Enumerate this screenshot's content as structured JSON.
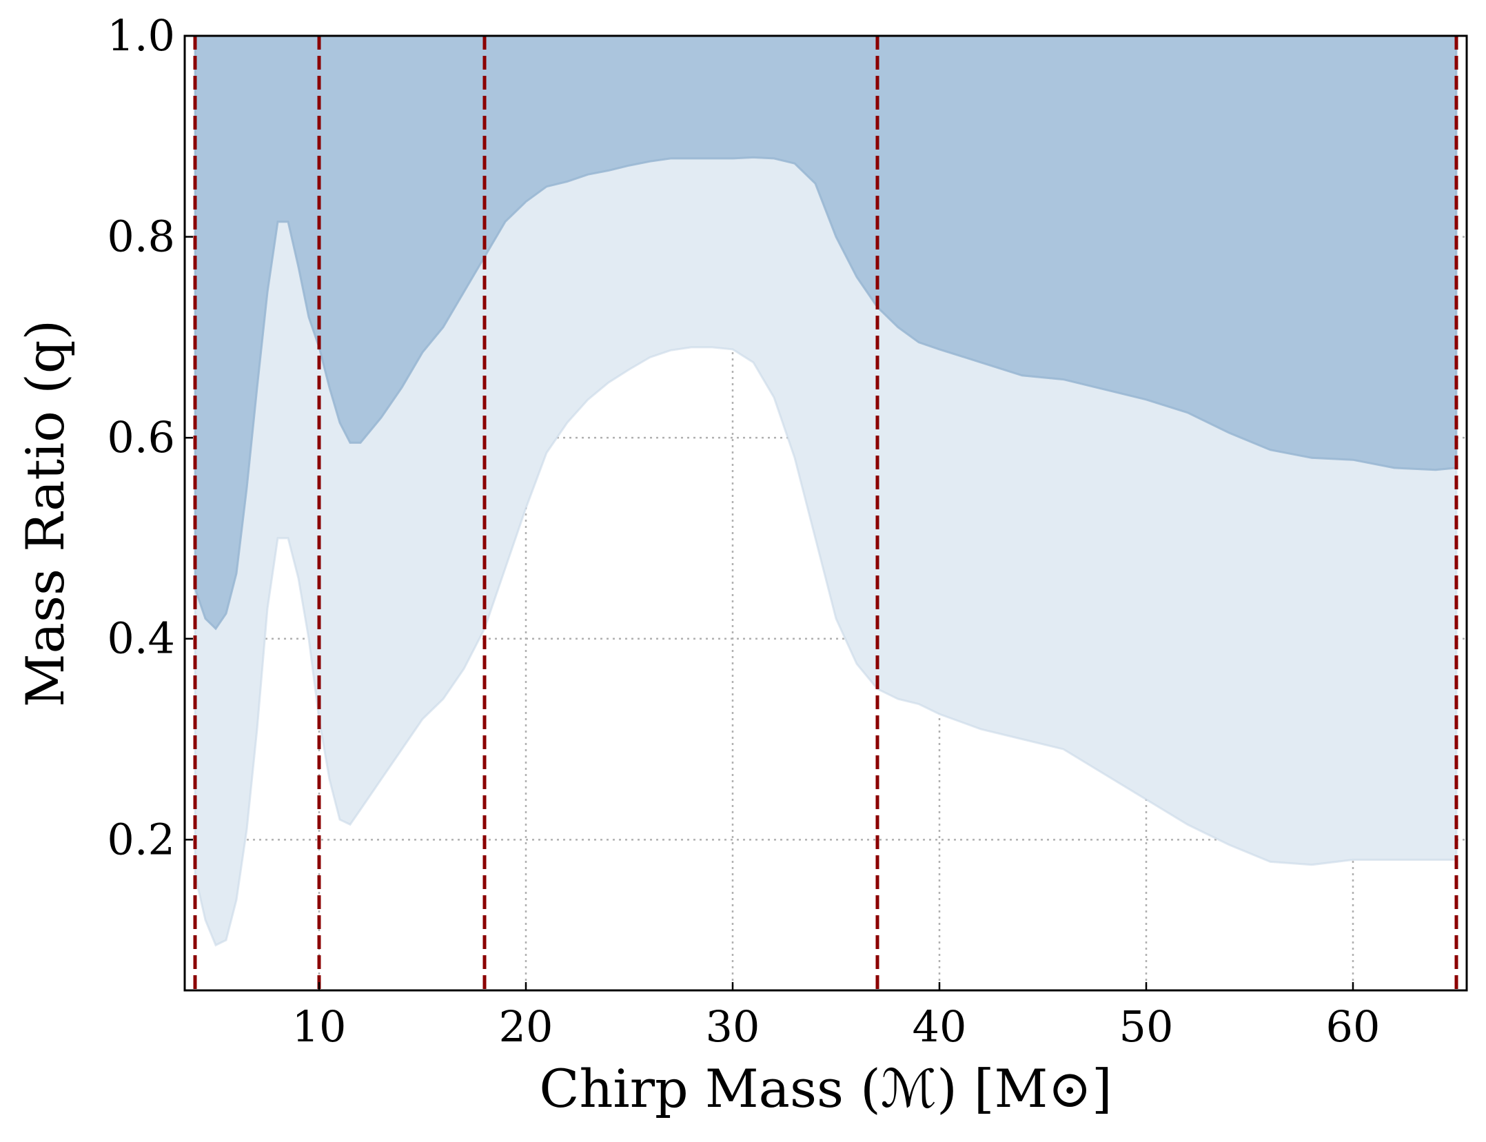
{
  "chart_data": {
    "type": "area",
    "xlabel": "Chirp Mass (ℳ) [M⊙]",
    "ylabel": "Mass Ratio (q)",
    "xlim": [
      3.5,
      65.5
    ],
    "ylim": [
      0.05,
      1.0
    ],
    "xticks": [
      "10",
      "20",
      "30",
      "40",
      "50",
      "60"
    ],
    "yticks": [
      "0.2",
      "0.4",
      "0.6",
      "0.8",
      "1.0"
    ],
    "grid": true,
    "colors": {
      "upper_band": "#abc5dd",
      "lower_band": "#e2ebf3",
      "vline": "#8b0000"
    },
    "upper_band": {
      "x": [
        4.0,
        4.5,
        5.0,
        5.5,
        6.0,
        6.5,
        7.0,
        7.5,
        8.0,
        8.5,
        9.0,
        9.5,
        10.0,
        10.5,
        11.0,
        11.5,
        12.0,
        13.0,
        14.0,
        15.0,
        16.0,
        17.0,
        18.0,
        19.0,
        20.0,
        21.0,
        22.0,
        23.0,
        24.0,
        25.0,
        26.0,
        27.0,
        28.0,
        29.0,
        30.0,
        31.0,
        32.0,
        33.0,
        34.0,
        35.0,
        36.0,
        37.0,
        38.0,
        39.0,
        40.0,
        42.0,
        44.0,
        46.0,
        48.0,
        50.0,
        52.0,
        54.0,
        56.0,
        58.0,
        60.0,
        62.0,
        64.0,
        65.0
      ],
      "lower": [
        0.45,
        0.42,
        0.41,
        0.425,
        0.465,
        0.55,
        0.65,
        0.745,
        0.815,
        0.815,
        0.77,
        0.72,
        0.69,
        0.65,
        0.615,
        0.595,
        0.595,
        0.62,
        0.65,
        0.685,
        0.71,
        0.745,
        0.78,
        0.815,
        0.835,
        0.85,
        0.855,
        0.862,
        0.866,
        0.871,
        0.875,
        0.878,
        0.878,
        0.878,
        0.878,
        0.879,
        0.878,
        0.873,
        0.853,
        0.8,
        0.76,
        0.73,
        0.71,
        0.695,
        0.688,
        0.675,
        0.662,
        0.658,
        0.648,
        0.638,
        0.625,
        0.605,
        0.588,
        0.58,
        0.578,
        0.57,
        0.568,
        0.57
      ],
      "upper": [
        1.0,
        1.0,
        1.0,
        1.0,
        1.0,
        1.0,
        1.0,
        1.0,
        1.0,
        1.0,
        1.0,
        1.0,
        1.0,
        1.0,
        1.0,
        1.0,
        1.0,
        1.0,
        1.0,
        1.0,
        1.0,
        1.0,
        1.0,
        1.0,
        1.0,
        1.0,
        1.0,
        1.0,
        1.0,
        1.0,
        1.0,
        1.0,
        1.0,
        1.0,
        1.0,
        1.0,
        1.0,
        1.0,
        1.0,
        1.0,
        1.0,
        1.0,
        1.0,
        1.0,
        1.0,
        1.0,
        1.0,
        1.0,
        1.0,
        1.0,
        1.0,
        1.0,
        1.0,
        1.0,
        1.0,
        1.0,
        1.0,
        1.0
      ]
    },
    "lower_band": {
      "x": [
        4.0,
        4.5,
        5.0,
        5.5,
        6.0,
        6.5,
        7.0,
        7.5,
        8.0,
        8.5,
        9.0,
        9.5,
        10.0,
        10.5,
        11.0,
        11.5,
        12.0,
        13.0,
        14.0,
        15.0,
        16.0,
        17.0,
        18.0,
        19.0,
        20.0,
        21.0,
        22.0,
        23.0,
        24.0,
        25.0,
        26.0,
        27.0,
        28.0,
        29.0,
        30.0,
        31.0,
        32.0,
        33.0,
        34.0,
        35.0,
        36.0,
        37.0,
        38.0,
        39.0,
        40.0,
        42.0,
        44.0,
        46.0,
        48.0,
        50.0,
        52.0,
        54.0,
        56.0,
        58.0,
        60.0,
        62.0,
        64.0,
        65.0
      ],
      "lower": [
        0.165,
        0.12,
        0.095,
        0.1,
        0.14,
        0.21,
        0.31,
        0.43,
        0.5,
        0.5,
        0.46,
        0.4,
        0.32,
        0.26,
        0.22,
        0.215,
        0.23,
        0.26,
        0.29,
        0.32,
        0.34,
        0.37,
        0.41,
        0.47,
        0.53,
        0.585,
        0.615,
        0.638,
        0.655,
        0.668,
        0.68,
        0.687,
        0.69,
        0.69,
        0.688,
        0.675,
        0.64,
        0.58,
        0.5,
        0.42,
        0.375,
        0.35,
        0.34,
        0.335,
        0.325,
        0.31,
        0.3,
        0.29,
        0.265,
        0.24,
        0.215,
        0.195,
        0.178,
        0.175,
        0.18,
        0.18,
        0.18,
        0.18
      ],
      "upper": [
        0.45,
        0.42,
        0.41,
        0.425,
        0.465,
        0.55,
        0.65,
        0.745,
        0.815,
        0.815,
        0.77,
        0.72,
        0.69,
        0.65,
        0.615,
        0.595,
        0.595,
        0.62,
        0.65,
        0.685,
        0.71,
        0.745,
        0.78,
        0.815,
        0.835,
        0.85,
        0.855,
        0.862,
        0.866,
        0.871,
        0.875,
        0.878,
        0.878,
        0.878,
        0.878,
        0.879,
        0.878,
        0.873,
        0.853,
        0.8,
        0.76,
        0.73,
        0.71,
        0.695,
        0.688,
        0.675,
        0.662,
        0.658,
        0.648,
        0.638,
        0.625,
        0.605,
        0.588,
        0.58,
        0.578,
        0.57,
        0.568,
        0.57
      ]
    },
    "vlines": [
      4.0,
      10.0,
      18.0,
      37.0,
      65.0
    ]
  }
}
